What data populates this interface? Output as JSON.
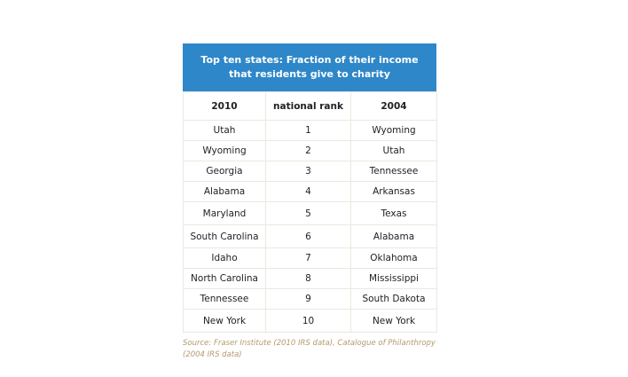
{
  "title_line1": "Top ten states: Fraction of their income",
  "title_line2": "that residents give to charity",
  "colors": {
    "header_bg": "#2e87c9",
    "header_text": "#ffffff",
    "grid": "#ece8df",
    "source_text": "#b29a6e"
  },
  "chart_data": {
    "type": "table",
    "columns": [
      "2010",
      "national rank",
      "2004"
    ],
    "rows": [
      [
        "Utah",
        "1",
        "Wyoming"
      ],
      [
        "Wyoming",
        "2",
        "Utah"
      ],
      [
        "Georgia",
        "3",
        "Tennessee"
      ],
      [
        "Alabama",
        "4",
        "Arkansas"
      ],
      [
        "Maryland",
        "5",
        "Texas"
      ],
      [
        "South Carolina",
        "6",
        "Alabama"
      ],
      [
        "Idaho",
        "7",
        "Oklahoma"
      ],
      [
        "North Carolina",
        "8",
        "Mississippi"
      ],
      [
        "Tennessee",
        "9",
        "South Dakota"
      ],
      [
        "New York",
        "10",
        "New York"
      ]
    ]
  },
  "source_line1": "Source: Fraser Institute (2010 IRS data), Catalogue of Philanthropy",
  "source_line2": "(2004 IRS data)"
}
